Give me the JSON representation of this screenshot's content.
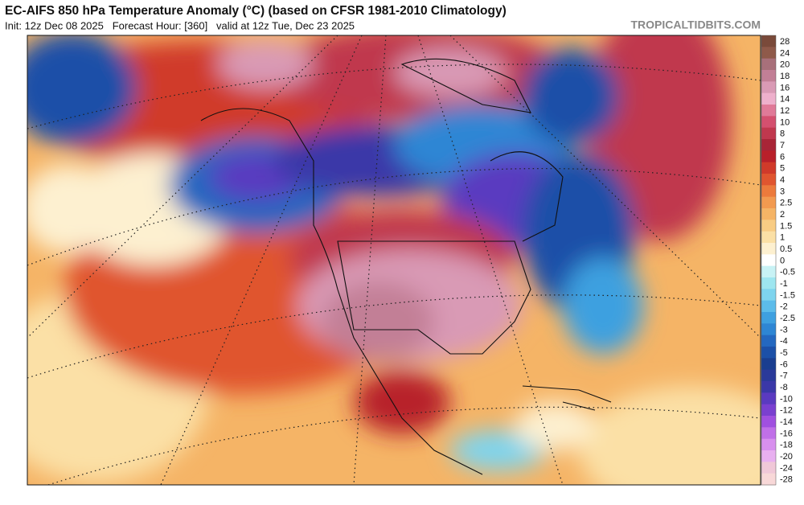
{
  "header": {
    "title": "EC-AIFS 850 hPa Temperature Anomaly (°C) (based on CFSR 1981-2010 Climatology)",
    "subtitle": "Init: 12z Dec 08 2025   Forecast Hour: [360]   valid at 12z Tue, Dec 23 2025",
    "source": "TROPICALTIDBITS.COM"
  },
  "colorbar": {
    "labels": [
      "28",
      "24",
      "20",
      "18",
      "16",
      "14",
      "12",
      "10",
      "8",
      "7",
      "6",
      "5",
      "4",
      "3",
      "2.5",
      "2",
      "1.5",
      "1",
      "0.5",
      "0",
      "-0.5",
      "-1",
      "-1.5",
      "-2",
      "-2.5",
      "-3",
      "-4",
      "-5",
      "-6",
      "-7",
      "-8",
      "-10",
      "-12",
      "-14",
      "-16",
      "-18",
      "-20",
      "-24",
      "-28"
    ],
    "colors": [
      "#7a4a3a",
      "#8f5a4a",
      "#a8707a",
      "#c27f96",
      "#d99ab5",
      "#eeb0cc",
      "#e07a98",
      "#d4506f",
      "#c0384e",
      "#a82537",
      "#b8202a",
      "#d03a2a",
      "#e0552f",
      "#ec7a3c",
      "#f29a50",
      "#f5b466",
      "#f8cc84",
      "#fbe0a6",
      "#fdf0d0",
      "#ffffff",
      "#c8f2f5",
      "#9ee6f0",
      "#7ed4ee",
      "#5cbcea",
      "#3ea0e0",
      "#2e86d4",
      "#2468c0",
      "#1c50a8",
      "#1a3e90",
      "#2a3a9a",
      "#3a38a8",
      "#5a3ac0",
      "#7a40d0",
      "#a050e0",
      "#c070e8",
      "#d890ee",
      "#e8b0f0",
      "#f0c8d8",
      "#f8d8d8"
    ]
  }
}
